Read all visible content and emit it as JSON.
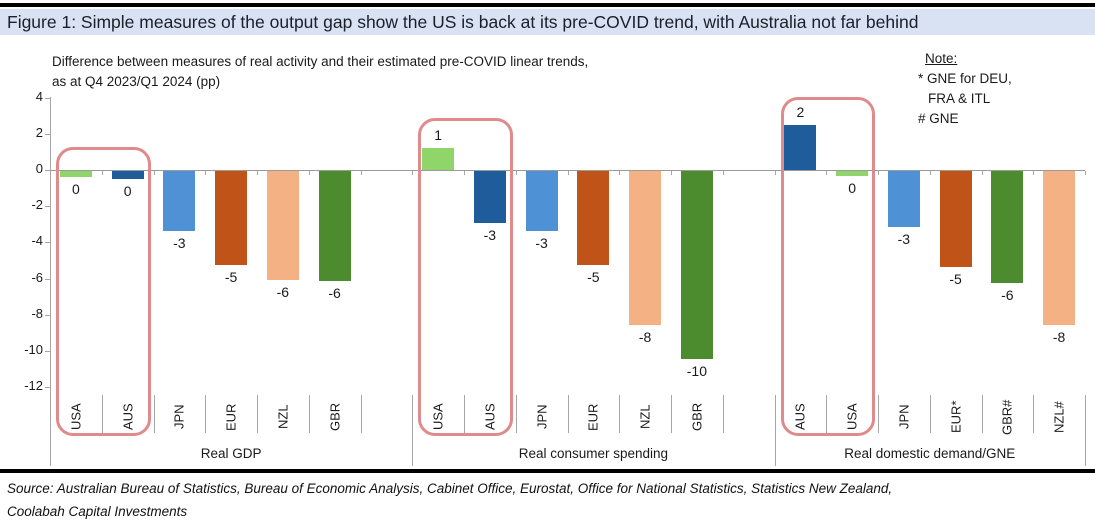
{
  "title": "Figure 1: Simple measures of the output gap show the US is back at its pre-COVID trend, with Australia not far behind",
  "subtitle_line1": "Difference between measures of real activity and their estimated pre-COVID linear trends,",
  "subtitle_line2": "as at Q4 2023/Q1 2024 (pp)",
  "note": {
    "heading": "Note:",
    "lines": [
      "* GNE for DEU,",
      "FRA & ITL",
      "# GNE"
    ]
  },
  "source_line1": "Source: Australian Bureau of Statistics, Bureau of Economic Analysis, Cabinet Office, Eurostat, Office for National Statistics, Statistics New Zealand,",
  "source_line2": "Coolabah Capital Investments",
  "colors": {
    "title_bg": "#D9E2F3",
    "highlight_outline": "#E08B8B",
    "axis_gray": "#9a9a9a",
    "usa_green": "#8FD56A",
    "aus_dark_blue": "#1F5C9C",
    "jpn_blue": "#4E91D4",
    "eur_rust": "#C05317",
    "nzl_salmon": "#F4B183",
    "gbr_dark_green": "#4D8B2F"
  },
  "chart_data": {
    "type": "bar",
    "title": "Figure 1: Simple measures of the output gap show the US is back at its pre-COVID trend, with Australia not far behind",
    "subtitle": "Difference between measures of real activity and their estimated pre-COVID linear trends, as at Q4 2023/Q1 2024 (pp)",
    "ylabel": "pp",
    "ylim": [
      -12,
      4
    ],
    "yticks": [
      4,
      2,
      0,
      -2,
      -4,
      -6,
      -8,
      -10,
      -12
    ],
    "grid": false,
    "legend_position": "none",
    "annotation": "USA and AUS bars outlined with rounded rectangle in each group",
    "groups": [
      {
        "label": "Real GDP",
        "bars": [
          {
            "category": "USA",
            "label": "0",
            "value": -0.35,
            "color": "#8FD56A",
            "highlighted": true
          },
          {
            "category": "AUS",
            "label": "0",
            "value": -0.45,
            "color": "#1F5C9C",
            "highlighted": true
          },
          {
            "category": "JPN",
            "label": "-3",
            "value": -3.3,
            "color": "#4E91D4",
            "highlighted": false
          },
          {
            "category": "EUR",
            "label": "-5",
            "value": -5.2,
            "color": "#C05317",
            "highlighted": false
          },
          {
            "category": "NZL",
            "label": "-6",
            "value": -6.0,
            "color": "#F4B183",
            "highlighted": false
          },
          {
            "category": "GBR",
            "label": "-6",
            "value": -6.1,
            "color": "#4D8B2F",
            "highlighted": false
          }
        ]
      },
      {
        "label": "Real consumer spending",
        "bars": [
          {
            "category": "USA",
            "label": "1",
            "value": 1.2,
            "color": "#8FD56A",
            "highlighted": true
          },
          {
            "category": "AUS",
            "label": "-3",
            "value": -2.9,
            "color": "#1F5C9C",
            "highlighted": true
          },
          {
            "category": "JPN",
            "label": "-3",
            "value": -3.3,
            "color": "#4E91D4",
            "highlighted": false
          },
          {
            "category": "EUR",
            "label": "-5",
            "value": -5.2,
            "color": "#C05317",
            "highlighted": false
          },
          {
            "category": "NZL",
            "label": "-8",
            "value": -8.5,
            "color": "#F4B183",
            "highlighted": false
          },
          {
            "category": "GBR",
            "label": "-10",
            "value": -10.4,
            "color": "#4D8B2F",
            "highlighted": false
          }
        ]
      },
      {
        "label": "Real domestic demand/GNE",
        "bars": [
          {
            "category": "AUS",
            "label": "2",
            "value": 2.5,
            "color": "#1F5C9C",
            "highlighted": true
          },
          {
            "category": "USA",
            "label": "0",
            "value": -0.3,
            "color": "#8FD56A",
            "highlighted": true
          },
          {
            "category": "JPN",
            "label": "-3",
            "value": -3.1,
            "color": "#4E91D4",
            "highlighted": false
          },
          {
            "category": "EUR*",
            "label": "-5",
            "value": -5.3,
            "color": "#C05317",
            "highlighted": false
          },
          {
            "category": "GBR#",
            "label": "-6",
            "value": -6.2,
            "color": "#4D8B2F",
            "highlighted": false
          },
          {
            "category": "NZL#",
            "label": "-8",
            "value": -8.5,
            "color": "#F4B183",
            "highlighted": false
          }
        ]
      }
    ]
  }
}
